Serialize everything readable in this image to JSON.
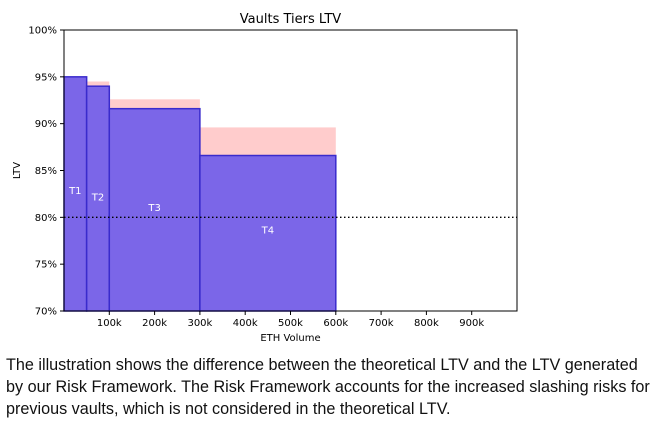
{
  "chart_data": {
    "type": "bar",
    "title": "Vaults Tiers LTV",
    "xlabel": "ETH Volume",
    "ylabel": "LTV",
    "xlim": [
      0,
      1000000
    ],
    "ylim": [
      70,
      100
    ],
    "xticks": [
      {
        "value": 100000,
        "label": "100k"
      },
      {
        "value": 200000,
        "label": "200k"
      },
      {
        "value": 300000,
        "label": "300k"
      },
      {
        "value": 400000,
        "label": "400k"
      },
      {
        "value": 500000,
        "label": "500k"
      },
      {
        "value": 600000,
        "label": "600k"
      },
      {
        "value": 700000,
        "label": "700k"
      },
      {
        "value": 800000,
        "label": "800k"
      },
      {
        "value": 900000,
        "label": "900k"
      }
    ],
    "yticks": [
      {
        "value": 70,
        "label": "70%"
      },
      {
        "value": 75,
        "label": "75%"
      },
      {
        "value": 80,
        "label": "80%"
      },
      {
        "value": 85,
        "label": "85%"
      },
      {
        "value": 90,
        "label": "90%"
      },
      {
        "value": 95,
        "label": "95%"
      },
      {
        "value": 100,
        "label": "100%"
      }
    ],
    "tiers": [
      {
        "label": "T1",
        "x_start": 0,
        "x_end": 50000,
        "theoretical_ltv": 95.0,
        "framework_ltv": 95.0
      },
      {
        "label": "T2",
        "x_start": 50000,
        "x_end": 100000,
        "theoretical_ltv": 94.5,
        "framework_ltv": 94.0
      },
      {
        "label": "T3",
        "x_start": 100000,
        "x_end": 300000,
        "theoretical_ltv": 92.6,
        "framework_ltv": 91.6
      },
      {
        "label": "T4",
        "x_start": 300000,
        "x_end": 600000,
        "theoretical_ltv": 89.6,
        "framework_ltv": 86.6
      }
    ],
    "reference_line": {
      "y": 80,
      "style": "dotted"
    },
    "colors": {
      "framework": "#7b66e8",
      "framework_edge": "#3a2bcc",
      "theoretical": "#ffcccc",
      "reference_line": "#000000"
    },
    "grid": false,
    "legend": "none"
  },
  "caption": {
    "line1": "The illustration shows the difference between the theoretical LTV and the LTV generated",
    "line2": "by our Risk Framework. The Risk Framework accounts for the increased slashing risks for",
    "line3": "previous vaults, which is not considered in the theoretical LTV."
  }
}
